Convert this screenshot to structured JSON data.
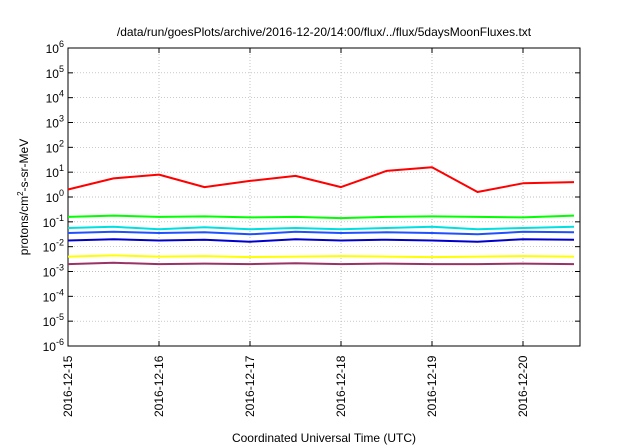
{
  "chart_data": {
    "type": "line",
    "title": "/data/run/goesPlots/archive/2016-12-20/14:00/flux/../flux/5daysMoonFluxes.txt",
    "xlabel": "Coordinated Universal Time (UTC)",
    "ylabel_parts": [
      "protons/cm",
      "2",
      "-s-sr-MeV"
    ],
    "x_ticks": [
      "2016-12-15",
      "2016-12-16",
      "2016-12-17",
      "2016-12-18",
      "2016-12-19",
      "2016-12-20"
    ],
    "xlim": [
      "2016-12-15T00:00",
      "2016-12-20T13:30"
    ],
    "y_scale": "log",
    "ylim": [
      1e-06,
      1000000.0
    ],
    "y_ticks": [
      {
        "base": "10",
        "exp": "-6",
        "value": 1e-06
      },
      {
        "base": "10",
        "exp": "-5",
        "value": 1e-05
      },
      {
        "base": "10",
        "exp": "-4",
        "value": 0.0001
      },
      {
        "base": "10",
        "exp": "-3",
        "value": 0.001
      },
      {
        "base": "10",
        "exp": "-2",
        "value": 0.01
      },
      {
        "base": "10",
        "exp": "-1",
        "value": 0.1
      },
      {
        "base": "10",
        "exp": "0",
        "value": 1
      },
      {
        "base": "10",
        "exp": "1",
        "value": 10
      },
      {
        "base": "10",
        "exp": "2",
        "value": 100
      },
      {
        "base": "10",
        "exp": "3",
        "value": 1000
      },
      {
        "base": "10",
        "exp": "4",
        "value": 10000
      },
      {
        "base": "10",
        "exp": "5",
        "value": 100000
      },
      {
        "base": "10",
        "exp": "6",
        "value": 1000000
      }
    ],
    "grid": true,
    "x_days": [
      0,
      0.5,
      1,
      1.5,
      2,
      2.5,
      3,
      3.5,
      4,
      4.5,
      5,
      5.56
    ],
    "series": [
      {
        "color": "#ff0000",
        "log10_values": [
          0.3,
          0.75,
          0.9,
          0.4,
          0.65,
          0.85,
          0.4,
          1.05,
          1.2,
          0.2,
          0.55,
          0.6
        ]
      },
      {
        "color": "#00ff00",
        "log10_values": [
          -0.8,
          -0.75,
          -0.8,
          -0.78,
          -0.82,
          -0.8,
          -0.85,
          -0.8,
          -0.78,
          -0.8,
          -0.82,
          -0.75
        ]
      },
      {
        "color": "#00e0e0",
        "log10_values": [
          -1.25,
          -1.2,
          -1.3,
          -1.22,
          -1.3,
          -1.25,
          -1.3,
          -1.25,
          -1.2,
          -1.3,
          -1.25,
          -1.2
        ]
      },
      {
        "color": "#1e50ff",
        "log10_values": [
          -1.45,
          -1.4,
          -1.45,
          -1.42,
          -1.5,
          -1.4,
          -1.45,
          -1.42,
          -1.45,
          -1.5,
          -1.4,
          -1.42
        ]
      },
      {
        "color": "#0000cc",
        "log10_values": [
          -1.75,
          -1.7,
          -1.75,
          -1.72,
          -1.8,
          -1.7,
          -1.75,
          -1.72,
          -1.75,
          -1.8,
          -1.7,
          -1.72
        ]
      },
      {
        "color": "#ffff00",
        "log10_values": [
          -2.4,
          -2.35,
          -2.4,
          -2.38,
          -2.42,
          -2.4,
          -2.38,
          -2.4,
          -2.42,
          -2.4,
          -2.38,
          -2.4
        ]
      },
      {
        "color": "#993366",
        "log10_values": [
          -2.7,
          -2.65,
          -2.7,
          -2.68,
          -2.7,
          -2.67,
          -2.7,
          -2.68,
          -2.7,
          -2.7,
          -2.68,
          -2.7
        ]
      }
    ]
  }
}
